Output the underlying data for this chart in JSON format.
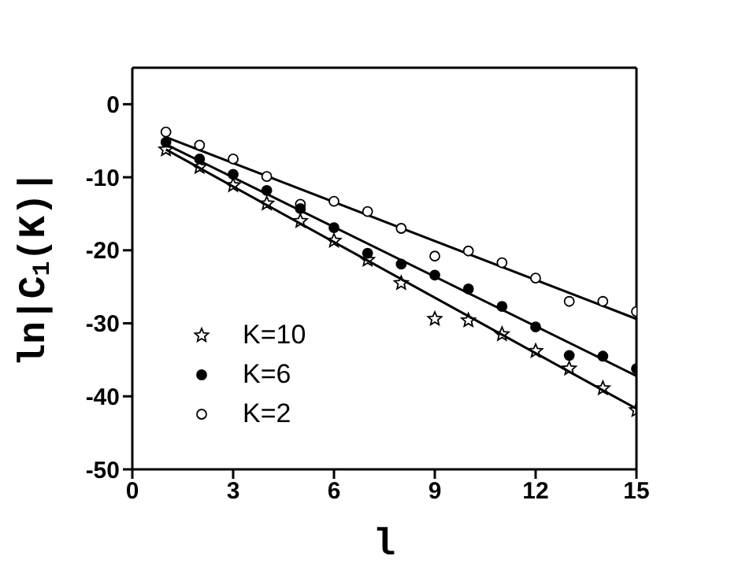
{
  "chart_data": {
    "type": "scatter",
    "xlabel": "l",
    "ylabel": "ln|C$_{1}$(K)|",
    "xlim": [
      0,
      15
    ],
    "xticks": [
      0,
      3,
      6,
      9,
      12,
      15
    ],
    "ylim": [
      -50,
      5
    ],
    "yticks": [
      -50,
      -40,
      -30,
      -20,
      -10,
      0
    ],
    "grid": false,
    "legend": "bottom left",
    "series": [
      {
        "name": "K=10",
        "marker": "star",
        "color": "#000000",
        "x": [
          1,
          2,
          3,
          4,
          5,
          6,
          7,
          8,
          9,
          10,
          11,
          12,
          13,
          14,
          15
        ],
        "values": [
          -6.2,
          -8.6,
          -11.1,
          -13.6,
          -16.0,
          -18.7,
          -21.3,
          -24.5,
          -29.4,
          -29.6,
          -31.5,
          -33.8,
          -36.2,
          -38.9,
          -41.9
        ]
      },
      {
        "name": "K=6",
        "marker": "circle",
        "color": "#000000",
        "x": [
          1,
          2,
          3,
          4,
          5,
          6,
          7,
          8,
          9,
          10,
          11,
          12,
          13,
          14,
          15
        ],
        "values": [
          -5.2,
          -7.5,
          -9.6,
          -11.8,
          -14.3,
          -16.9,
          -20.4,
          -21.9,
          -23.4,
          -25.3,
          -27.7,
          -30.5,
          -34.4,
          -34.5,
          -36.2
        ]
      },
      {
        "name": "K=2",
        "marker": "circle",
        "color": "#ffffff",
        "x": [
          1,
          2,
          3,
          4,
          5,
          6,
          7,
          8,
          9,
          10,
          11,
          12,
          13,
          14,
          15
        ],
        "values": [
          -3.8,
          -5.6,
          -7.5,
          -9.9,
          -13.7,
          -13.3,
          -14.7,
          -17.0,
          -20.8,
          -20.1,
          -21.7,
          -23.8,
          -27.0,
          -27.0,
          -28.4
        ]
      },
      {
        "type": "line",
        "marker": "none",
        "color": "#000000",
        "x": [
          1,
          15
        ],
        "values": [
          -6.2,
          -41.7
        ]
      },
      {
        "type": "line",
        "marker": "none",
        "color": "#000000",
        "x": [
          1,
          15
        ],
        "values": [
          -5.5,
          -37.2
        ]
      },
      {
        "type": "line",
        "marker": "none",
        "color": "#000000",
        "x": [
          1,
          15
        ],
        "values": [
          -4.5,
          -29.4
        ]
      }
    ]
  }
}
